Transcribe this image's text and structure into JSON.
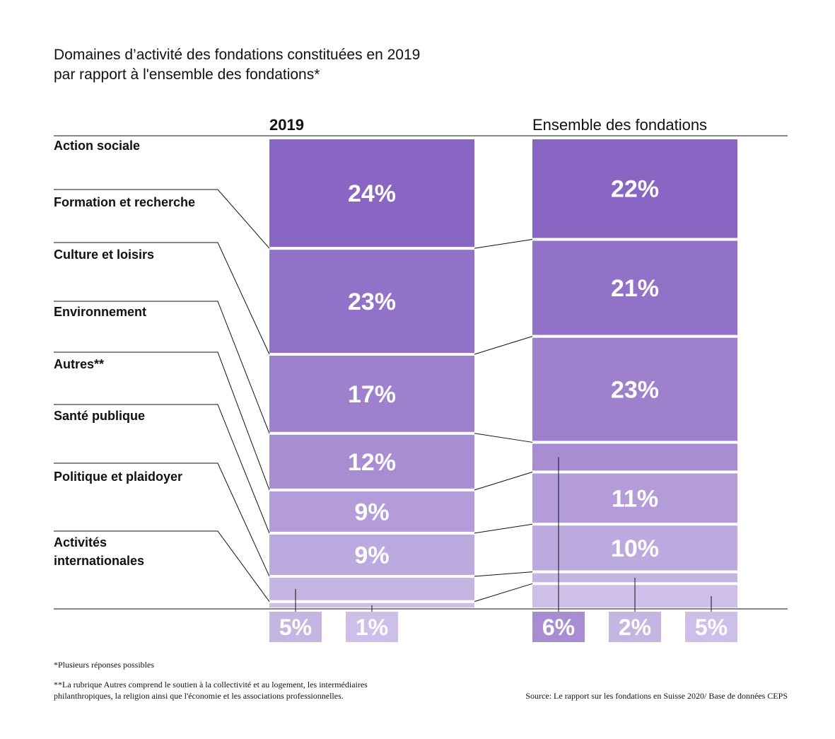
{
  "colors": {
    "c1": "#8a66c4",
    "c2": "#9272c8",
    "c3": "#9e80cd",
    "c4": "#a88dd3",
    "c5": "#b39cd9",
    "c6": "#bca9de",
    "c7": "#c5b5e3",
    "c8": "#cdbfe8",
    "line": "#111111"
  },
  "chart_data": {
    "type": "bar",
    "title_lines": [
      "Domaines d’activité des fondations constituées en 2019",
      "par rapport à l'ensemble des fondations*"
    ],
    "categories": [
      "Action sociale",
      "Formation et recherche",
      "Culture et loisirs",
      "Environnement",
      "Autres**",
      "Santé publique",
      "Politique et plaidoyer",
      "Activités internationales"
    ],
    "category_label_lines": [
      [
        "Action sociale"
      ],
      [
        "Formation et recherche"
      ],
      [
        "Culture et loisirs"
      ],
      [
        "Environnement"
      ],
      [
        "Autres**"
      ],
      [
        "Santé publique"
      ],
      [
        "Politique et plaidoyer"
      ],
      [
        "Activités",
        "internationales"
      ]
    ],
    "series": [
      {
        "name": "2019",
        "values": [
          24,
          23,
          17,
          12,
          9,
          9,
          5,
          1
        ],
        "labels": [
          "24%",
          "23%",
          "17%",
          "12%",
          "9%",
          "9%",
          "5%",
          "1%"
        ]
      },
      {
        "name": "Ensemble des fondations",
        "values": [
          22,
          21,
          23,
          6,
          11,
          10,
          2,
          5
        ],
        "labels": [
          "22%",
          "21%",
          "23%",
          "6%",
          "11%",
          "10%",
          "2%",
          "5%"
        ]
      }
    ],
    "unit": "%"
  },
  "footnotes": {
    "note1": "*Plusieurs réponses possibles",
    "note2_lines": [
      "**La rubrique Autres comprend le soutien à la collectivité et au logement, les intermédiaires",
      "philanthropiques, la religion ainsi que l'économie et les associations professionnelles."
    ],
    "source": "Source: Le rapport sur les fondations en Suisse 2020/ Base de données CEPS"
  }
}
